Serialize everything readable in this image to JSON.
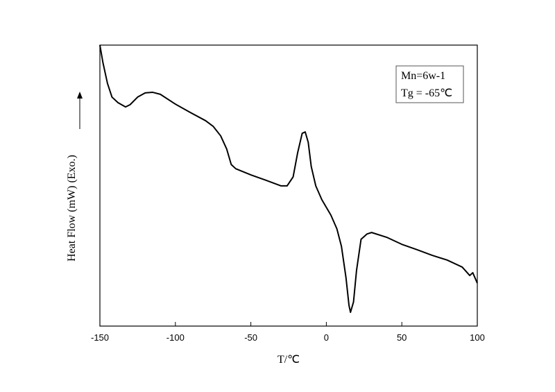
{
  "chart_data": {
    "type": "line",
    "x_label": "T/℃",
    "y_label": "Heat Flow (mW)  (Exo.)",
    "annotations": [
      "Mn=6w-1",
      "Tg = -65℃"
    ],
    "x": [
      -150,
      -148,
      -145,
      -142,
      -138,
      -133,
      -130,
      -125,
      -120,
      -115,
      -110,
      -100,
      -90,
      -80,
      -75,
      -70,
      -66,
      -63,
      -60,
      -50,
      -40,
      -30,
      -26,
      -22,
      -19,
      -16,
      -14,
      -12,
      -10,
      -7,
      -3,
      3,
      7,
      10,
      13,
      15,
      16,
      18,
      20,
      23,
      27,
      30,
      40,
      50,
      60,
      70,
      80,
      90,
      95,
      97,
      100
    ],
    "series": [
      {
        "color": "#000000",
        "values": [
          100,
          93.8,
          86.4,
          81.5,
          79.5,
          78.0,
          78.8,
          81.5,
          83.0,
          83.2,
          82.5,
          79.0,
          76.0,
          73.1,
          71.1,
          67.7,
          63.0,
          57.5,
          56.0,
          53.8,
          51.9,
          49.9,
          49.9,
          53.1,
          61.7,
          68.6,
          69.1,
          65.4,
          56.8,
          49.9,
          45.0,
          39.5,
          34.6,
          28.4,
          17.3,
          7.4,
          4.9,
          8.6,
          19.8,
          30.9,
          32.8,
          33.3,
          31.6,
          29.1,
          27.2,
          25.2,
          23.5,
          21.0,
          18.0,
          19.0,
          15.3
        ]
      }
    ],
    "xlim": [
      -150,
      100
    ],
    "xticks": [
      -150,
      -100,
      -50,
      0,
      50,
      100
    ],
    "ylim": [
      0,
      100
    ]
  }
}
